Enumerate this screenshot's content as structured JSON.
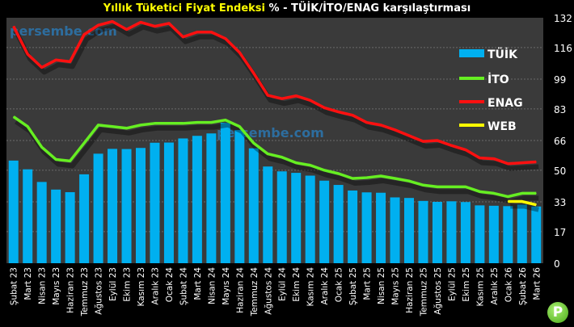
{
  "chart_data": {
    "type": "bar+line",
    "title_highlight": "Yıllık Tüketici Fiyat Endeksi",
    "title_rest": "% - TÜİK/İTO/ENAG karşılaştırması",
    "watermark": "persembe.com",
    "logo_letter": "P",
    "ylim": [
      0,
      132
    ],
    "yticks": [
      0,
      17,
      33,
      50,
      66,
      83,
      99,
      116,
      132
    ],
    "categories": [
      "Şubat 23",
      "Mart 23",
      "Nisan 23",
      "Mayıs 23",
      "Haziran 23",
      "Temmuz 23",
      "Ağustos 23",
      "Eylül 23",
      "Ekim 23",
      "Kasım 23",
      "Aralık 23",
      "Ocak 24",
      "Şubat 24",
      "Mart 24",
      "Nisan 24",
      "Mayıs 24",
      "Haziran 24",
      "Temmuz 24",
      "Ağustos 24",
      "Eylül 24",
      "Ekim 24",
      "Kasım 24",
      "Aralık 24",
      "Ocak 25",
      "Şubat 25",
      "Mart 25",
      "Nisan 25",
      "Mayıs 25",
      "Haziran 25",
      "Temmuz 25",
      "Ağustos 25",
      "Eylül 25",
      "Ekim 25",
      "Kasım 25",
      "Aralık 25",
      "Ocak 26",
      "Şubat 26",
      "Mart 26"
    ],
    "series": [
      {
        "name": "TÜİK",
        "kind": "bar",
        "color": "#00b0f0",
        "values": [
          55.2,
          50.5,
          43.7,
          39.6,
          38.2,
          47.8,
          58.9,
          61.5,
          61.4,
          62.0,
          64.8,
          64.9,
          67.1,
          68.5,
          69.8,
          75.5,
          71.6,
          61.8,
          52.0,
          49.4,
          48.6,
          47.1,
          44.4,
          42.1,
          39.1,
          38.1,
          37.9,
          35.4,
          35.1,
          33.5,
          33.0,
          33.3,
          32.9,
          31.1,
          30.9,
          30.7,
          31.5,
          30.5
        ]
      },
      {
        "name": "İTO",
        "kind": "line",
        "color": "#66ee22",
        "values": [
          78.8,
          73.5,
          62.4,
          55.8,
          55.0,
          64.6,
          74.3,
          73.5,
          72.6,
          74.3,
          75.2,
          75.2,
          75.2,
          75.7,
          75.7,
          77.0,
          73.5,
          64.6,
          58.8,
          57.0,
          54.0,
          52.7,
          50.0,
          48.2,
          45.6,
          46.0,
          46.9,
          45.6,
          44.2,
          42.0,
          41.1,
          41.1,
          41.1,
          38.5,
          37.6,
          35.8,
          37.6,
          37.6
        ]
      },
      {
        "name": "ENAG",
        "kind": "line",
        "color": "#ff1010",
        "values": [
          127.4,
          112.4,
          105.3,
          109.3,
          108.4,
          123.0,
          128.0,
          130.0,
          125.7,
          129.6,
          127.4,
          129.0,
          121.7,
          124.3,
          124.3,
          120.8,
          113.3,
          102.2,
          90.3,
          88.5,
          90.0,
          87.6,
          83.6,
          81.4,
          79.6,
          75.7,
          74.3,
          71.7,
          68.6,
          65.5,
          66.0,
          63.3,
          61.0,
          56.6,
          56.2,
          53.5,
          54.0,
          54.5
        ]
      },
      {
        "name": "WEB",
        "kind": "line",
        "color": "#ffff00",
        "values": [
          null,
          null,
          null,
          null,
          null,
          null,
          null,
          null,
          null,
          null,
          null,
          null,
          null,
          null,
          null,
          null,
          null,
          null,
          null,
          null,
          null,
          null,
          null,
          null,
          null,
          null,
          null,
          null,
          null,
          null,
          null,
          null,
          null,
          null,
          null,
          33.2,
          33.2,
          31.4
        ]
      }
    ],
    "legend_position": "top-right",
    "grid": true
  }
}
